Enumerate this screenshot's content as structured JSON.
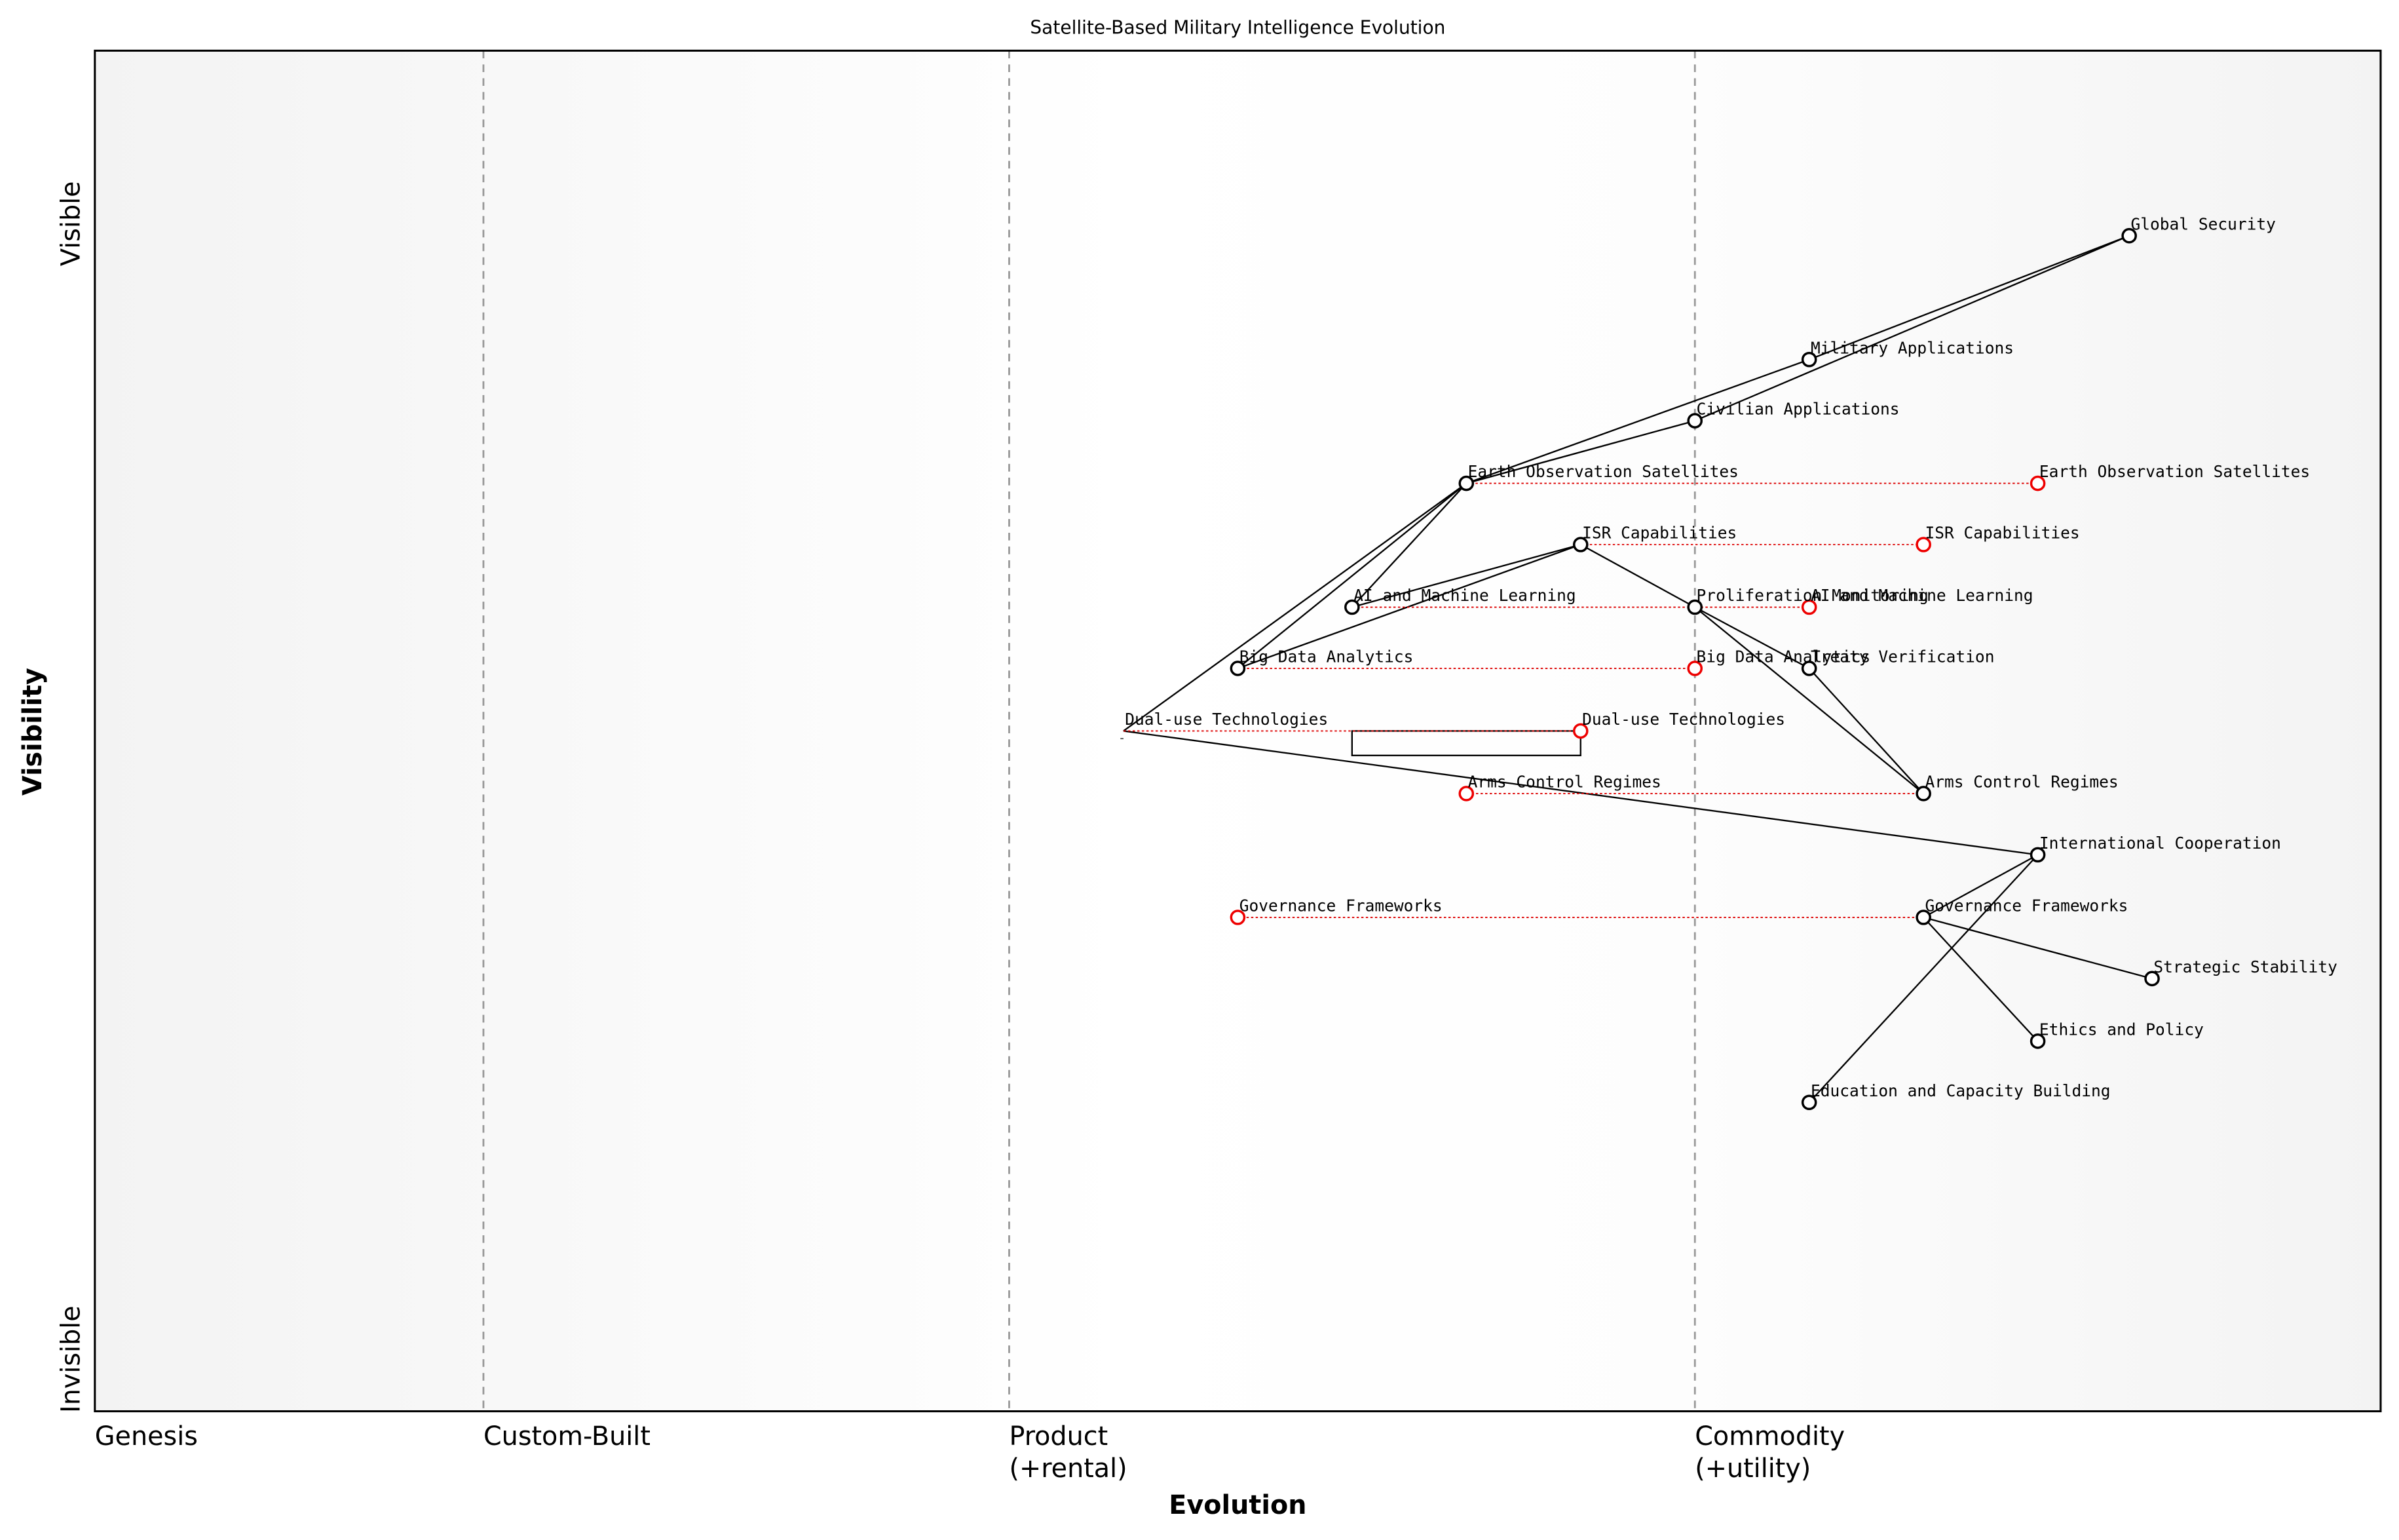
{
  "title": "Satellite-Based Military Intelligence Evolution",
  "x_axis_label": "Evolution",
  "y_axis_label": "Visibility",
  "y_ends": {
    "top": "Visible",
    "bottom": "Invisible"
  },
  "stages": [
    {
      "value": 0,
      "label": [
        "Genesis"
      ]
    },
    {
      "value": 0.17,
      "label": [
        "Custom-Built"
      ]
    },
    {
      "value": 0.4,
      "label": [
        "Product",
        "(+rental)"
      ]
    },
    {
      "value": 0.7,
      "label": [
        "Commodity",
        "(+utility)"
      ]
    }
  ],
  "components": [
    {
      "name": "Global Security",
      "evolution": 0.89,
      "visibility": 0.864
    },
    {
      "name": "Military Applications",
      "evolution": 0.75,
      "visibility": 0.773
    },
    {
      "name": "Civilian Applications",
      "evolution": 0.7,
      "visibility": 0.728
    },
    {
      "name": "Earth Observation Satellites",
      "evolution": 0.6,
      "visibility": 0.682
    },
    {
      "name": "ISR Capabilities",
      "evolution": 0.65,
      "visibility": 0.637
    },
    {
      "name": "AI and Machine Learning",
      "evolution": 0.55,
      "visibility": 0.591
    },
    {
      "name": "Proliferation Monitoring",
      "evolution": 0.7,
      "visibility": 0.591
    },
    {
      "name": "Big Data Analytics",
      "evolution": 0.5,
      "visibility": 0.546
    },
    {
      "name": "Treaty Verification",
      "evolution": 0.75,
      "visibility": 0.546
    },
    {
      "name": "Dual-use Technologies",
      "evolution": 0.45,
      "visibility": 0.5,
      "hidden": true
    },
    {
      "name": "Arms Control Regimes",
      "evolution": 0.8,
      "visibility": 0.454
    },
    {
      "name": "International Cooperation",
      "evolution": 0.85,
      "visibility": 0.409
    },
    {
      "name": "Governance Frameworks",
      "evolution": 0.8,
      "visibility": 0.363
    },
    {
      "name": "Strategic Stability",
      "evolution": 0.9,
      "visibility": 0.318
    },
    {
      "name": "Ethics and Policy",
      "evolution": 0.85,
      "visibility": 0.272
    },
    {
      "name": "Education and Capacity Building",
      "evolution": 0.75,
      "visibility": 0.227
    }
  ],
  "links": [
    [
      "Global Security",
      "Military Applications"
    ],
    [
      "Global Security",
      "Civilian Applications"
    ],
    [
      "Military Applications",
      "Earth Observation Satellites"
    ],
    [
      "Civilian Applications",
      "Earth Observation Satellites"
    ],
    [
      "Earth Observation Satellites",
      "AI and Machine Learning"
    ],
    [
      "Earth Observation Satellites",
      "Dual-use Technologies"
    ],
    [
      "Earth Observation Satellites",
      "Big Data Analytics"
    ],
    [
      "ISR Capabilities",
      "AI and Machine Learning"
    ],
    [
      "ISR Capabilities",
      "Big Data Analytics"
    ],
    [
      "ISR Capabilities",
      "Proliferation Monitoring"
    ],
    [
      "Proliferation Monitoring",
      "Treaty Verification"
    ],
    [
      "Proliferation Monitoring",
      "Arms Control Regimes"
    ],
    [
      "Treaty Verification",
      "Arms Control Regimes"
    ],
    [
      "Dual-use Technologies",
      "International Cooperation"
    ],
    [
      "International Cooperation",
      "Governance Frameworks"
    ],
    [
      "International Cooperation",
      "Education and Capacity Building"
    ],
    [
      "Governance Frameworks",
      "Strategic Stability"
    ],
    [
      "Governance Frameworks",
      "Ethics and Policy"
    ]
  ],
  "evolutions": [
    {
      "name": "Earth Observation Satellites",
      "evolution": 0.85
    },
    {
      "name": "ISR Capabilities",
      "evolution": 0.8
    },
    {
      "name": "AI and Machine Learning",
      "evolution": 0.75
    },
    {
      "name": "Big Data Analytics",
      "evolution": 0.7
    },
    {
      "name": "Dual-use Technologies",
      "evolution": 0.65
    },
    {
      "name": "Arms Control Regimes",
      "evolution": 0.6
    },
    {
      "name": "Governance Frameworks",
      "evolution": 0.5
    }
  ],
  "annotation_box": {
    "evolution": [
      0.55,
      0.65
    ],
    "visibility": [
      0.5,
      0.482
    ]
  }
}
